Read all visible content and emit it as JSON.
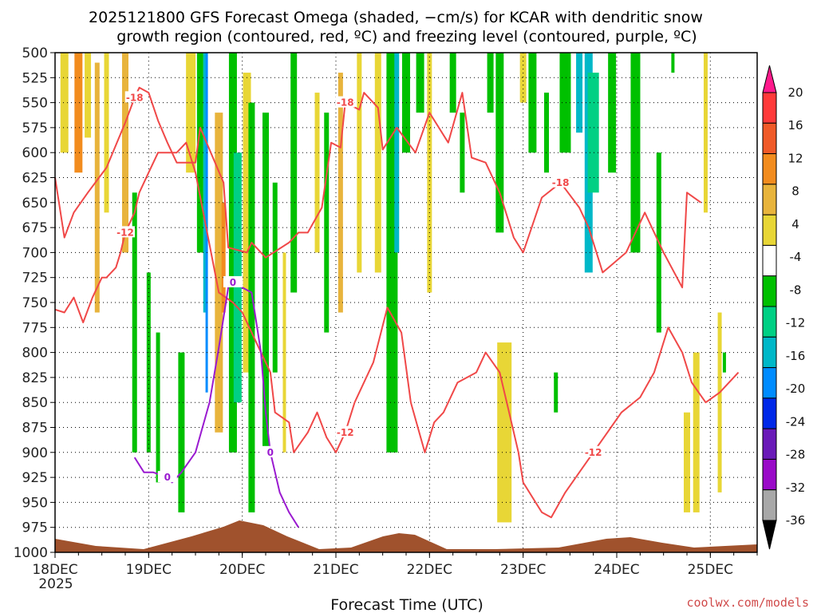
{
  "chart_data": {
    "type": "heatmap",
    "title_line1": "2025121800 GFS Forecast Omega (shaded, −cm/s) for KCAR with dendritic snow",
    "title_line2": "growth region (contoured, red, ºC) and freezing level (contoured, purple, ºC)",
    "xlabel": "Forecast Time (UTC)",
    "credit": "coolwx.com/models",
    "x_ticks": [
      "18DEC",
      "19DEC",
      "20DEC",
      "21DEC",
      "22DEC",
      "23DEC",
      "24DEC",
      "25DEC"
    ],
    "x_year": "2025",
    "xlim_days": [
      18,
      25.5
    ],
    "y_ticks": [
      500,
      525,
      550,
      575,
      600,
      625,
      650,
      675,
      700,
      725,
      750,
      775,
      800,
      825,
      850,
      875,
      900,
      925,
      950,
      975,
      1000
    ],
    "ylim": [
      500,
      1000
    ],
    "colorbar": {
      "ticks": [
        20,
        16,
        12,
        8,
        4,
        -4,
        -8,
        -12,
        -16,
        -20,
        -24,
        -28,
        -32,
        -36
      ],
      "colors": [
        "#ff1a8c",
        "#ff3a3a",
        "#f05a28",
        "#f28c1e",
        "#e8b43c",
        "#e8d636",
        "#ffffff",
        "#00c000",
        "#00d084",
        "#00b8c8",
        "#008cff",
        "#0028e8",
        "#6a1ab8",
        "#9a0ac8",
        "#a8a8a8",
        "#000000"
      ]
    },
    "contour_labels": [
      {
        "text": "-18",
        "color": "#ee4444"
      },
      {
        "text": "-12",
        "color": "#ee4444"
      },
      {
        "text": "0",
        "color": "#9a1ad0"
      }
    ],
    "series": [
      {
        "name": "-18",
        "color": "#f04848",
        "points": [
          [
            18.0,
            625
          ],
          [
            18.05,
            655
          ],
          [
            18.1,
            685
          ],
          [
            18.2,
            660
          ],
          [
            18.35,
            640
          ],
          [
            18.55,
            615
          ],
          [
            18.75,
            570
          ],
          [
            18.85,
            545
          ],
          [
            18.9,
            535
          ],
          [
            19.0,
            540
          ],
          [
            19.1,
            568
          ],
          [
            19.2,
            590
          ],
          [
            19.3,
            610
          ],
          [
            19.5,
            610
          ],
          [
            19.55,
            575
          ],
          [
            19.8,
            630
          ],
          [
            19.85,
            695
          ],
          [
            20.05,
            700
          ],
          [
            20.1,
            690
          ],
          [
            20.25,
            705
          ],
          [
            20.5,
            690
          ],
          [
            20.6,
            680
          ],
          [
            20.7,
            680
          ],
          [
            20.85,
            655
          ],
          [
            20.95,
            590
          ],
          [
            21.05,
            595
          ],
          [
            21.1,
            550
          ],
          [
            21.25,
            557
          ],
          [
            21.3,
            540
          ],
          [
            21.45,
            555
          ],
          [
            21.5,
            597
          ],
          [
            21.65,
            575
          ],
          [
            21.85,
            600
          ],
          [
            22.0,
            560
          ],
          [
            22.2,
            590
          ],
          [
            22.35,
            540
          ],
          [
            22.45,
            605
          ],
          [
            22.6,
            610
          ],
          [
            22.75,
            640
          ],
          [
            22.9,
            685
          ],
          [
            23.0,
            700
          ],
          [
            23.2,
            645
          ],
          [
            23.4,
            630
          ],
          [
            23.6,
            655
          ],
          [
            23.7,
            675
          ],
          [
            23.85,
            720
          ],
          [
            24.1,
            700
          ],
          [
            24.3,
            660
          ],
          [
            24.5,
            700
          ],
          [
            24.7,
            735
          ],
          [
            24.75,
            640
          ],
          [
            24.9,
            650
          ]
        ]
      },
      {
        "name": "-12",
        "color": "#f04848",
        "points": [
          [
            18.0,
            757
          ],
          [
            18.1,
            760
          ],
          [
            18.2,
            745
          ],
          [
            18.3,
            770
          ],
          [
            18.4,
            745
          ],
          [
            18.5,
            725
          ],
          [
            18.55,
            725
          ],
          [
            18.65,
            715
          ],
          [
            18.7,
            700
          ],
          [
            18.75,
            680
          ],
          [
            18.85,
            660
          ],
          [
            18.9,
            640
          ],
          [
            19.0,
            620
          ],
          [
            19.1,
            600
          ],
          [
            19.3,
            600
          ],
          [
            19.4,
            590
          ],
          [
            19.5,
            620
          ],
          [
            19.75,
            740
          ],
          [
            19.9,
            750
          ],
          [
            20.0,
            760
          ],
          [
            20.1,
            780
          ],
          [
            20.2,
            800
          ],
          [
            20.3,
            820
          ],
          [
            20.35,
            860
          ],
          [
            20.5,
            870
          ],
          [
            20.55,
            900
          ],
          [
            20.7,
            880
          ],
          [
            20.8,
            860
          ],
          [
            20.9,
            885
          ],
          [
            21.0,
            900
          ],
          [
            21.1,
            880
          ],
          [
            21.2,
            850
          ],
          [
            21.4,
            810
          ],
          [
            21.55,
            755
          ],
          [
            21.7,
            780
          ],
          [
            21.8,
            850
          ],
          [
            21.95,
            900
          ],
          [
            22.05,
            870
          ],
          [
            22.15,
            860
          ],
          [
            22.3,
            830
          ],
          [
            22.5,
            820
          ],
          [
            22.6,
            800
          ],
          [
            22.75,
            820
          ],
          [
            22.85,
            860
          ],
          [
            22.95,
            900
          ],
          [
            23.0,
            930
          ],
          [
            23.2,
            960
          ],
          [
            23.3,
            965
          ],
          [
            23.45,
            940
          ],
          [
            23.6,
            920
          ],
          [
            23.75,
            900
          ],
          [
            23.9,
            880
          ],
          [
            24.05,
            860
          ],
          [
            24.25,
            845
          ],
          [
            24.4,
            820
          ],
          [
            24.55,
            775
          ],
          [
            24.7,
            800
          ],
          [
            24.8,
            830
          ],
          [
            24.95,
            850
          ],
          [
            25.1,
            840
          ],
          [
            25.3,
            820
          ]
        ]
      },
      {
        "name": "0",
        "color": "#9a1ad0",
        "points": [
          [
            18.85,
            905
          ],
          [
            18.95,
            920
          ],
          [
            19.05,
            920
          ],
          [
            19.2,
            925
          ],
          [
            19.25,
            930
          ],
          [
            19.35,
            920
          ],
          [
            19.5,
            900
          ],
          [
            19.65,
            850
          ],
          [
            19.75,
            795
          ],
          [
            19.85,
            735
          ],
          [
            19.9,
            730
          ],
          [
            20.0,
            735
          ],
          [
            20.1,
            740
          ],
          [
            20.15,
            770
          ],
          [
            20.2,
            800
          ],
          [
            20.25,
            860
          ],
          [
            20.3,
            900
          ],
          [
            20.4,
            940
          ],
          [
            20.5,
            960
          ],
          [
            20.6,
            975
          ]
        ]
      }
    ]
  }
}
